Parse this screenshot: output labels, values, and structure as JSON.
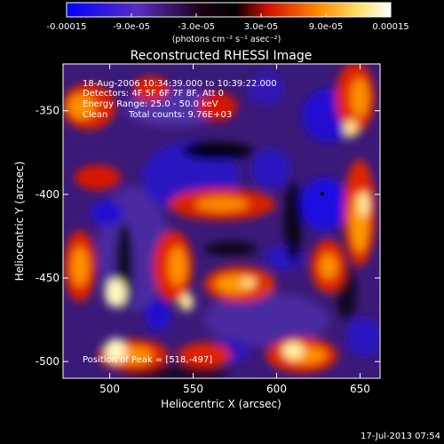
{
  "chart_data": {
    "type": "heatmap",
    "title": "Reconstructed RHESSI Image",
    "xlabel": "Heliocentric X (arcsec)",
    "ylabel": "Heliocentric Y (arcsec)",
    "xlim": [
      472,
      662
    ],
    "ylim": [
      -510,
      -322
    ],
    "x_ticks": [
      500,
      550,
      600,
      650
    ],
    "y_ticks": [
      -350,
      -400,
      -450,
      -500
    ],
    "colorbar": {
      "range": [
        -0.00015,
        0.00015
      ],
      "tick_labels": [
        "-0.00015",
        "-9.0e-05",
        "-3.0e-05",
        "3.0e-05",
        "9.0e-05",
        "0.00015"
      ],
      "tick_values": [
        -0.00015,
        -9e-05,
        -3e-05,
        3e-05,
        9e-05,
        0.00015
      ],
      "unit_label": "(photons cm⁻² s⁻¹ asec⁻²)",
      "colors": [
        "#0000ff",
        "#5a2cc0",
        "#000000",
        "#ff2200",
        "#ffa000",
        "#ffffcc",
        "#ffffff"
      ]
    },
    "annotations": {
      "time": "18-Aug-2006 10:34:39.000 to 10:39:22.000",
      "detectors": "Detectors: 4F 5F 6F 7F 8F, Att 0",
      "energy": "Energy Range: 25.0 - 50.0 keV",
      "method": "Clean",
      "counts": "Total counts: 9.76E+03",
      "peak": "Position of Peak = [518,-497]"
    },
    "grid": false
  },
  "footer": {
    "date": "17-Jul-2013 07:54"
  }
}
